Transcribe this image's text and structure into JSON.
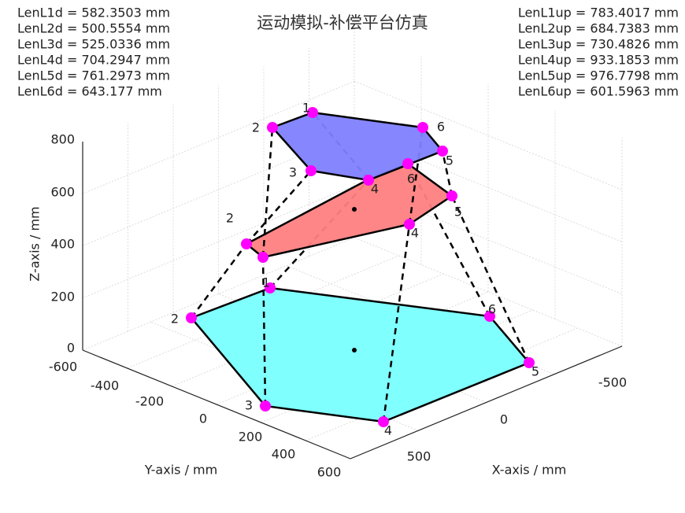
{
  "header": {
    "title": "运动模拟-补偿平台仿真"
  },
  "left_readout": [
    "LenL1d = 582.3503 mm",
    "LenL2d = 500.5554 mm",
    "LenL3d = 525.0336 mm",
    "LenL4d = 704.2947 mm",
    "LenL5d = 761.2973 mm",
    "LenL6d = 643.177 mm"
  ],
  "right_readout": [
    "LenL1up = 783.4017 mm",
    "LenL2up = 684.7383 mm",
    "LenL3up = 730.4826 mm",
    "LenL4up = 933.1853 mm",
    "LenL5up = 976.7798 mm",
    "LenL6up = 601.5963 mm"
  ],
  "axes": {
    "z_label": "Z-axis / mm",
    "y_label": "Y-axis / mm",
    "x_label": "X-axis / mm",
    "z_ticks": [
      0,
      200,
      400,
      600,
      800
    ],
    "y_ticks": [
      -600,
      -400,
      -200,
      0,
      200,
      400,
      600
    ],
    "x_ticks": [
      -500,
      0,
      500
    ]
  },
  "vertex_labels": {
    "base": [
      "1",
      "2",
      "3",
      "4",
      "5",
      "6"
    ],
    "middle": [
      "2",
      "4",
      "5",
      "6"
    ],
    "top": [
      "1",
      "2",
      "3",
      "4",
      "5",
      "6"
    ]
  }
}
